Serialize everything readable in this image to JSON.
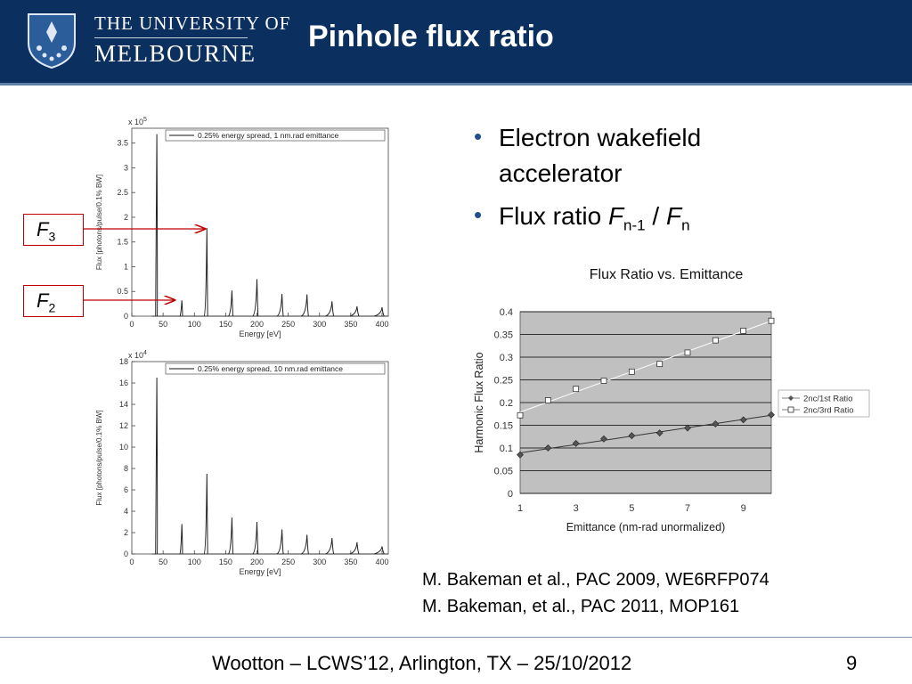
{
  "header": {
    "university_line1": "THE UNIVERSITY OF",
    "university_line2": "MELBOURNE",
    "title": "Pinhole flux ratio"
  },
  "bullets": [
    {
      "text": "Electron wakefield accelerator"
    },
    {
      "prefix": "Flux ratio ",
      "f1": "F",
      "sub1": "n-1",
      "sep": " / ",
      "f2": "F",
      "sub2": "n"
    }
  ],
  "labels": {
    "f3": {
      "main": "F",
      "sub": "3"
    },
    "f2": {
      "main": "F",
      "sub": "2"
    }
  },
  "references": [
    "M. Bakeman et al., PAC 2009, WE6RFP074",
    "M. Bakeman, et al., PAC 2011, MOP161"
  ],
  "footer": {
    "text": "Wootton – LCWS’12, Arlington, TX – 25/10/2012",
    "page": "9"
  },
  "colors": {
    "header_bg": "#0b2f5e",
    "arrow": "#c00000",
    "bullet": "#1f4e8c",
    "plot_bg": "#c0c0c0"
  },
  "chart_data": [
    {
      "type": "line",
      "scale_label": "x 10",
      "scale_exp": "5",
      "xlabel": "Energy [eV]",
      "ylabel": "Flux [photons/pulse/0.1% BW]",
      "legend": "0.25% energy spread, 1 nm.rad emittance",
      "legend_position": "top",
      "xlim": [
        0,
        410
      ],
      "ylim": [
        0,
        3.8
      ],
      "xticks": [
        0,
        50,
        100,
        150,
        200,
        250,
        300,
        350,
        400
      ],
      "yticks": [
        0,
        0.5,
        1,
        1.5,
        2,
        2.5,
        3,
        3.5
      ],
      "peaks": [
        {
          "x": 40,
          "y": 3.68
        },
        {
          "x": 80,
          "y": 0.32
        },
        {
          "x": 120,
          "y": 1.78
        },
        {
          "x": 160,
          "y": 0.52
        },
        {
          "x": 200,
          "y": 0.75
        },
        {
          "x": 240,
          "y": 0.45
        },
        {
          "x": 280,
          "y": 0.44
        },
        {
          "x": 320,
          "y": 0.3
        },
        {
          "x": 360,
          "y": 0.2
        },
        {
          "x": 400,
          "y": 0.18
        }
      ]
    },
    {
      "type": "line",
      "scale_label": "x 10",
      "scale_exp": "4",
      "xlabel": "Energy [eV]",
      "ylabel": "Flux [photons/pulse/0.1% BW]",
      "legend": "0.25% energy spread, 10 nm.rad emittance",
      "legend_position": "top",
      "xlim": [
        0,
        410
      ],
      "ylim": [
        0,
        18
      ],
      "xticks": [
        0,
        50,
        100,
        150,
        200,
        250,
        300,
        350,
        400
      ],
      "yticks": [
        0,
        2,
        4,
        6,
        8,
        10,
        12,
        14,
        16,
        18
      ],
      "peaks": [
        {
          "x": 40,
          "y": 16.5
        },
        {
          "x": 80,
          "y": 2.8
        },
        {
          "x": 120,
          "y": 7.5
        },
        {
          "x": 160,
          "y": 3.4
        },
        {
          "x": 200,
          "y": 3.0
        },
        {
          "x": 240,
          "y": 2.3
        },
        {
          "x": 280,
          "y": 1.8
        },
        {
          "x": 320,
          "y": 1.5
        },
        {
          "x": 360,
          "y": 1.1
        },
        {
          "x": 400,
          "y": 0.7
        }
      ]
    },
    {
      "type": "line",
      "title": "Flux Ratio vs. Emittance",
      "xlabel": "Emittance (nm-rad unormalized)",
      "ylabel": "Harmonic Flux Ratio",
      "xlim": [
        1,
        10
      ],
      "ylim": [
        0,
        0.4
      ],
      "xticks": [
        1,
        3,
        5,
        7,
        9
      ],
      "yticks": [
        0,
        0.05,
        0.1,
        0.15,
        0.2,
        0.25,
        0.3,
        0.35,
        0.4
      ],
      "grid": true,
      "legend_position": "right",
      "x": [
        1,
        2,
        3,
        4,
        5,
        6,
        7,
        8,
        9,
        10
      ],
      "series": [
        {
          "name": "2nc/1st Ratio",
          "marker": "diamond",
          "values": [
            0.085,
            0.1,
            0.11,
            0.12,
            0.127,
            0.133,
            0.144,
            0.153,
            0.162,
            0.173
          ]
        },
        {
          "name": "2nc/3rd Ratio",
          "marker": "square",
          "values": [
            0.172,
            0.205,
            0.23,
            0.248,
            0.268,
            0.285,
            0.31,
            0.337,
            0.358,
            0.38
          ]
        }
      ]
    }
  ]
}
